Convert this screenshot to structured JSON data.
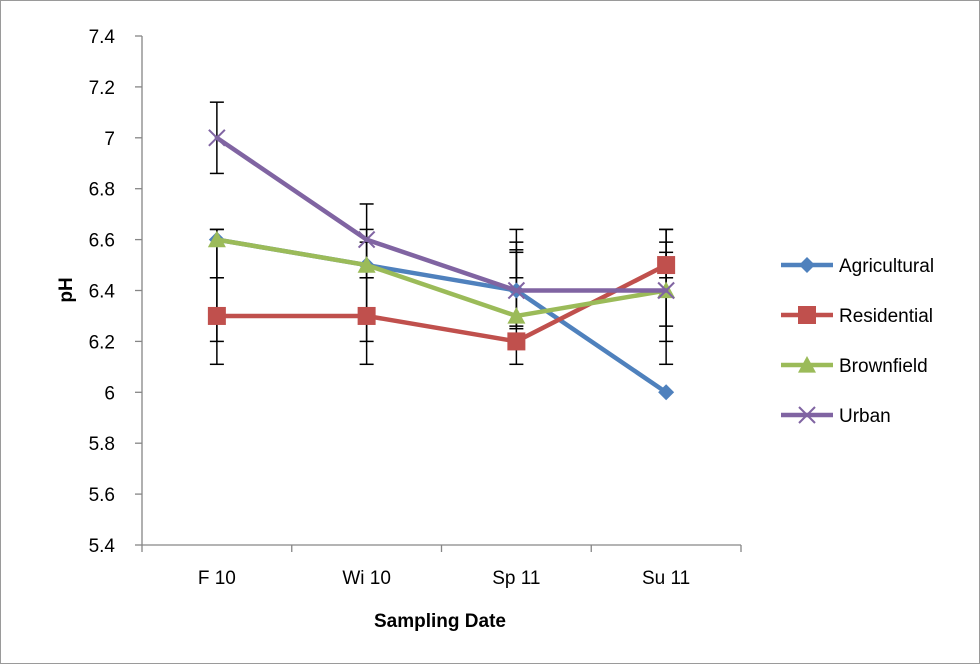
{
  "chart_data": {
    "type": "line",
    "title": "",
    "xlabel": "Sampling Date",
    "ylabel": "pH",
    "categories": [
      "F 10",
      "Wi 10",
      "Sp 11",
      "Su 11"
    ],
    "ylim": [
      5.4,
      7.4
    ],
    "ytick_step": 0.2,
    "yticks": [
      "5.4",
      "5.6",
      "5.8",
      "6",
      "6.2",
      "6.4",
      "6.6",
      "6.8",
      "7",
      "7.2",
      "7.4"
    ],
    "grid": false,
    "legend_position": "right",
    "error_bars": true,
    "series": [
      {
        "name": "Agricultural",
        "color": "#4F81BD",
        "marker": "diamond",
        "values": [
          6.6,
          6.5,
          6.4,
          6.0
        ]
      },
      {
        "name": "Residential",
        "color": "#C0504D",
        "marker": "square",
        "values": [
          6.3,
          6.3,
          6.2,
          6.5
        ]
      },
      {
        "name": "Brownfield",
        "color": "#9BBB59",
        "marker": "triangle",
        "values": [
          6.6,
          6.5,
          6.3,
          6.4
        ]
      },
      {
        "name": "Urban",
        "color": "#8064A2",
        "marker": "x",
        "values": [
          7.0,
          6.6,
          6.4,
          6.4
        ]
      }
    ],
    "error_bar_ranges": [
      [
        [
          6.45,
          6.64
        ],
        [
          6.11,
          6.45
        ],
        [
          6.2,
          6.64
        ],
        [
          6.86,
          7.14
        ]
      ],
      [
        [
          6.45,
          6.59
        ],
        [
          6.11,
          6.45
        ],
        [
          6.2,
          6.74
        ],
        [
          6.45,
          6.64
        ]
      ],
      [
        [
          6.11,
          6.64
        ],
        [
          6.25,
          6.55
        ],
        [
          6.26,
          6.56
        ],
        [
          6.45,
          6.59
        ]
      ],
      [
        [
          6.11,
          6.64
        ],
        [
          6.2,
          6.59
        ],
        [
          6.26,
          6.55
        ],
        [
          6.45,
          6.64
        ]
      ]
    ]
  }
}
